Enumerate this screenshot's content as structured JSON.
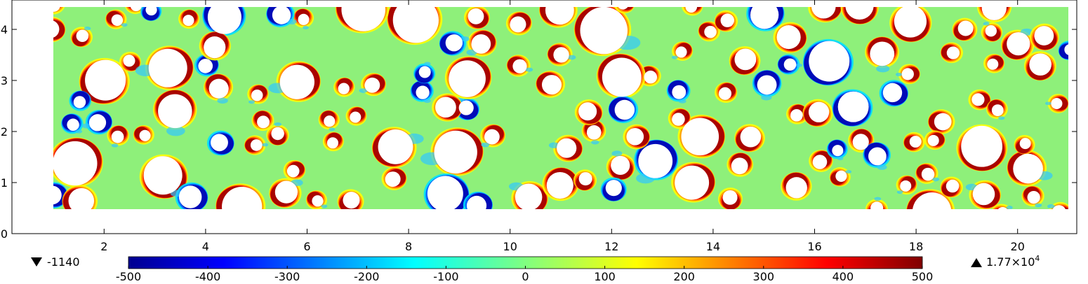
{
  "chart_data": {
    "type": "heatmap",
    "title": "",
    "xlabel": "",
    "ylabel": "",
    "xlim": [
      0,
      21.3
    ],
    "ylim": [
      0,
      4.6
    ],
    "domain": {
      "x": [
        1,
        21
      ],
      "y": [
        0.5,
        4.45
      ]
    },
    "x_ticks": [
      2,
      4,
      6,
      8,
      10,
      12,
      14,
      16,
      18,
      20
    ],
    "y_ticks": [
      0,
      1,
      2,
      3,
      4
    ],
    "colorbar": {
      "colormap": "rainbow",
      "range": [
        -500,
        500
      ],
      "ticks": [
        -500,
        -400,
        -300,
        -200,
        -100,
        0,
        100,
        200,
        300,
        400,
        500
      ],
      "min_value_label": "-1140",
      "max_value_label": "1.77×10",
      "max_value_exponent": "4"
    }
  }
}
